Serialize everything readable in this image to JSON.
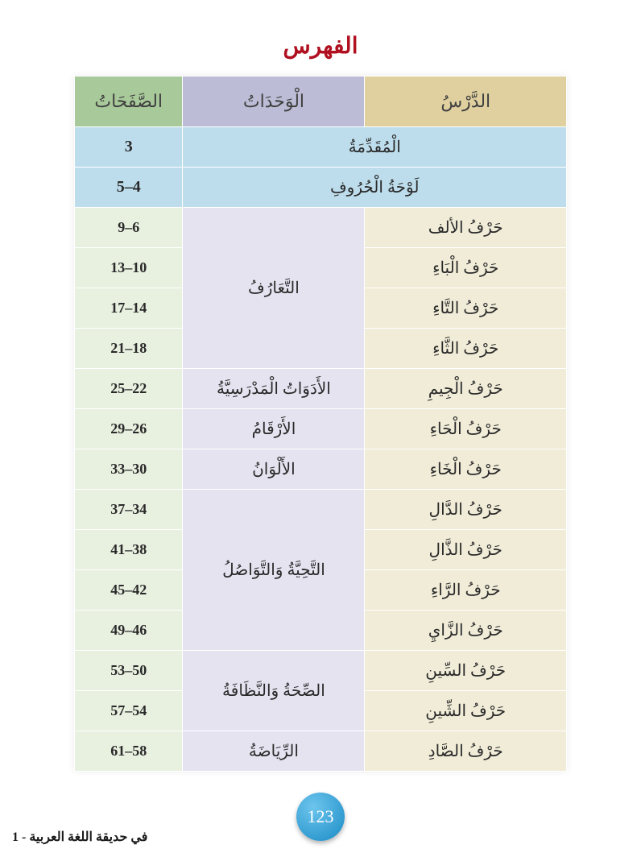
{
  "title": "الفهرس",
  "headers": {
    "lesson": "الدَّرْسُ",
    "units": "الْوَحَدَاتُ",
    "pages": "الصَّفَحَاتُ"
  },
  "intro_rows": [
    {
      "label": "الْمُقَدِّمَةُ",
      "pages": "3"
    },
    {
      "label": "لَوْحَةُ الْحُرُوفِ",
      "pages": "5–4"
    }
  ],
  "groups": [
    {
      "unit": "التَّعَارُفُ",
      "rows": [
        {
          "lesson": "حَرْفُ الألف",
          "pages": "9–6"
        },
        {
          "lesson": "حَرْفُ الْبَاءِ",
          "pages": "13–10"
        },
        {
          "lesson": "حَرْفُ التَّاءِ",
          "pages": "17–14"
        },
        {
          "lesson": "حَرْفُ الثَّاءِ",
          "pages": "21–18"
        }
      ]
    },
    {
      "unit": "الأَدَوَاتُ الْمَدْرَسِيَّةُ",
      "rows": [
        {
          "lesson": "حَرْفُ الْجِيمِ",
          "pages": "25–22"
        }
      ]
    },
    {
      "unit": "الأَرْقَامُ",
      "rows": [
        {
          "lesson": "حَرْفُ الْحَاءِ",
          "pages": "29–26"
        }
      ]
    },
    {
      "unit": "الأَلْوَانُ",
      "rows": [
        {
          "lesson": "حَرْفُ الْخَاءِ",
          "pages": "33–30"
        }
      ]
    },
    {
      "unit": "التَّحِيَّةُ وَالتَّوَاصُلُ",
      "rows": [
        {
          "lesson": "حَرْفُ الدَّالِ",
          "pages": "37–34"
        },
        {
          "lesson": "حَرْفُ الذَّالِ",
          "pages": "41–38"
        },
        {
          "lesson": "حَرْفُ الرَّاءِ",
          "pages": "45–42"
        },
        {
          "lesson": "حَرْفُ الزَّايِ",
          "pages": "49–46"
        }
      ]
    },
    {
      "unit": "الصِّحَةُ وَالنَّظَافَةُ",
      "rows": [
        {
          "lesson": "حَرْفُ السِّينِ",
          "pages": "53–50"
        },
        {
          "lesson": "حَرْفُ الشِّينِ",
          "pages": "57–54"
        }
      ]
    },
    {
      "unit": "الرِّيَاضَةُ",
      "rows": [
        {
          "lesson": "حَرْفُ الصَّادِ",
          "pages": "61–58"
        }
      ]
    }
  ],
  "page_number": "123",
  "footer": "في حديقة اللغة العربية - 1"
}
